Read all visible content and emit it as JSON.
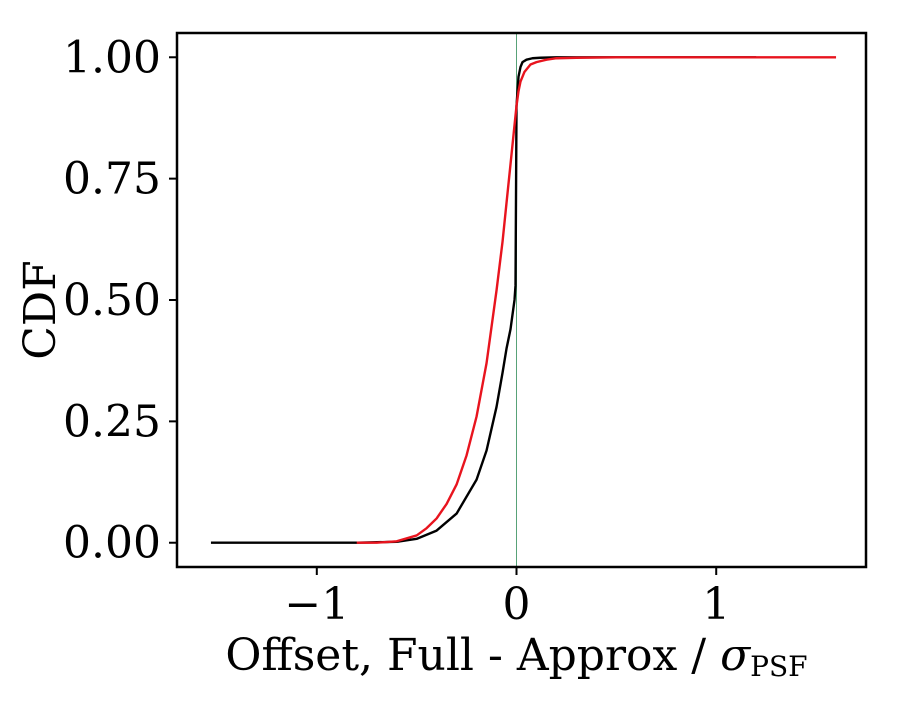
{
  "chart_data": {
    "type": "line",
    "title": "",
    "xlabel": "Offset, Full - Approx / ",
    "xlabel_symbol": "σ",
    "xlabel_subscript": "PSF",
    "ylabel": "CDF",
    "xlim": [
      -1.7,
      1.75
    ],
    "ylim": [
      -0.05,
      1.05
    ],
    "xticks": [
      -1,
      0,
      1
    ],
    "xtick_labels": [
      "−1",
      "0",
      "1"
    ],
    "yticks": [
      0.0,
      0.25,
      0.5,
      0.75,
      1.0
    ],
    "ytick_labels": [
      "0.00",
      "0.25",
      "0.50",
      "0.75",
      "1.00"
    ],
    "reference_line": {
      "x": 0,
      "color": "#2e8b57"
    },
    "grid": false,
    "series": [
      {
        "color": "#000000",
        "x": [
          -1.53,
          -0.8,
          -0.6,
          -0.5,
          -0.4,
          -0.3,
          -0.2,
          -0.15,
          -0.1,
          -0.07,
          -0.05,
          -0.03,
          -0.02,
          -0.01,
          -0.005,
          0,
          0.005,
          0.01,
          0.02,
          0.03,
          0.05,
          0.08,
          0.12,
          0.2,
          0.4,
          1.2
        ],
        "y": [
          0.0,
          0.0,
          0.002,
          0.008,
          0.025,
          0.06,
          0.13,
          0.19,
          0.28,
          0.35,
          0.4,
          0.44,
          0.47,
          0.5,
          0.53,
          0.9,
          0.93,
          0.96,
          0.98,
          0.99,
          0.995,
          0.998,
          0.999,
          1.0,
          1.0,
          1.0
        ]
      },
      {
        "color": "#e8141e",
        "x": [
          -0.8,
          -0.7,
          -0.6,
          -0.5,
          -0.45,
          -0.4,
          -0.35,
          -0.3,
          -0.25,
          -0.2,
          -0.15,
          -0.1,
          -0.07,
          -0.05,
          -0.03,
          -0.01,
          0,
          0.01,
          0.02,
          0.04,
          0.07,
          0.1,
          0.15,
          0.2,
          0.3,
          0.5,
          1.0,
          1.6
        ],
        "y": [
          0.0,
          0.0,
          0.003,
          0.015,
          0.03,
          0.05,
          0.08,
          0.12,
          0.18,
          0.26,
          0.37,
          0.52,
          0.62,
          0.7,
          0.78,
          0.86,
          0.9,
          0.93,
          0.95,
          0.97,
          0.985,
          0.99,
          0.995,
          0.998,
          0.999,
          1.0,
          1.0,
          1.0
        ]
      }
    ]
  }
}
